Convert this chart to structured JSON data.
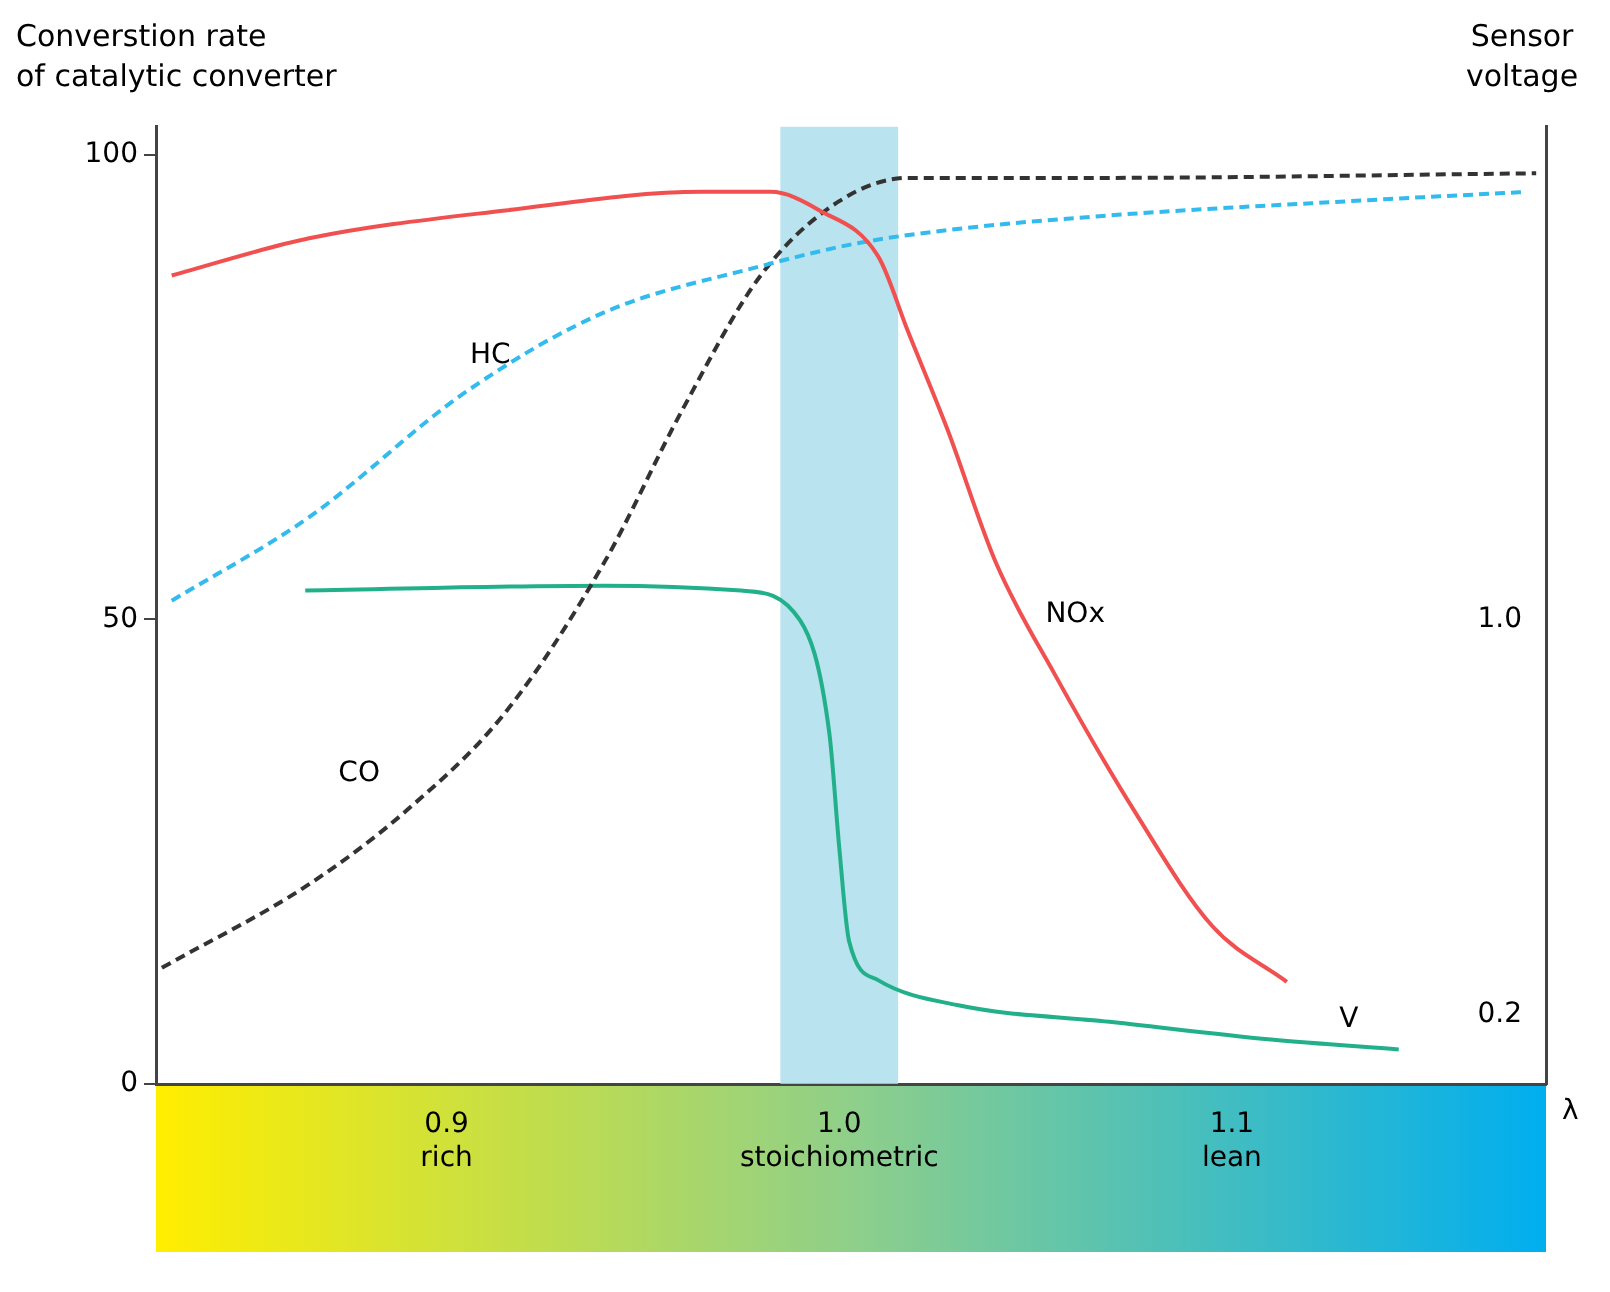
{
  "chart_data": {
    "type": "line",
    "ylabel": "Converstion rate\nof catalytic converter",
    "y2label": "Sensor\nvoltage",
    "xlabel": "λ",
    "xlim": [
      0.826,
      1.18
    ],
    "xticks": [
      {
        "value": 0.9,
        "label": "0.9\nrich"
      },
      {
        "value": 1.0,
        "label": "1.0\nstoichiometric"
      },
      {
        "value": 1.1,
        "label": "1.1\nlean"
      }
    ],
    "ylim": [
      0,
      103
    ],
    "yticks": [
      0,
      50,
      100
    ],
    "y2lim": [
      0.06,
      2.0
    ],
    "y2ticks": [
      0.2,
      {
        "value": 1.0,
        "label": "1.0"
      }
    ],
    "legend": false,
    "marker": "none",
    "bands": [
      {
        "axis": "x",
        "from": 0.985,
        "to": 1.015,
        "color": "#a8dcea"
      }
    ],
    "series": [
      {
        "name": "NOx",
        "color": "#f05050",
        "line_style": "solid",
        "x": [
          0.83,
          0.865,
          0.915,
          0.965,
          0.9825,
          0.995,
          1.01,
          1.0175,
          1.0275,
          1.04,
          1.055,
          1.075,
          1.095,
          1.114
        ],
        "values": [
          87,
          91,
          94,
          96,
          96,
          94,
          89,
          81,
          70.5,
          56,
          44,
          29.5,
          17,
          11
        ]
      },
      {
        "name": "HC",
        "color": "#33bbee",
        "line_style": "dashed",
        "x": [
          0.83,
          0.865,
          0.905,
          0.94,
          0.98,
          1.005,
          1.03,
          1.07,
          1.13,
          1.175
        ],
        "values": [
          52,
          61,
          74.5,
          83,
          88,
          90.5,
          92,
          93.5,
          95,
          96
        ]
      },
      {
        "name": "CO",
        "color": "#333333",
        "line_style": "dashed",
        "x": [
          0.8275,
          0.865,
          0.89,
          0.915,
          0.94,
          0.96,
          0.98,
          1.0,
          1.0175,
          1.065,
          1.1775
        ],
        "values": [
          12.5,
          21.5,
          29.5,
          40,
          56,
          72.5,
          87,
          95,
          97.5,
          97.5,
          98
        ]
      },
      {
        "name": "V",
        "color": "#22b08a",
        "line_style": "solid",
        "axis": "y2",
        "x": [
          0.864,
          0.94,
          0.975,
          0.99,
          0.9975,
          1.0,
          1.0025,
          1.01,
          1.03,
          1.07,
          1.11,
          1.1425
        ],
        "values": [
          1.06,
          1.07,
          1.06,
          1.0,
          0.77,
          0.54,
          0.35,
          0.27,
          0.22,
          0.185,
          0.15,
          0.13
        ]
      }
    ]
  }
}
